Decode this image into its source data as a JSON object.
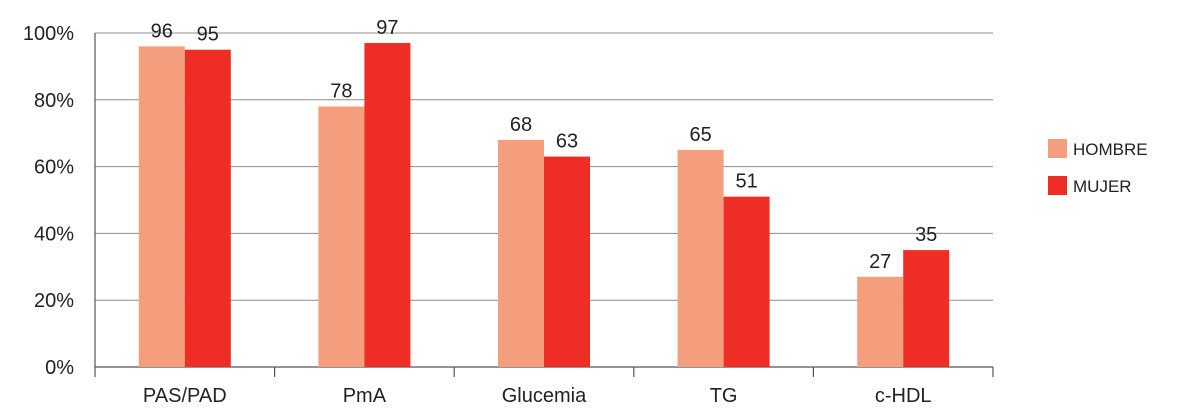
{
  "chart_data": {
    "type": "bar",
    "categories": [
      "PAS/PAD",
      "PmA",
      "Glucemia",
      "TG",
      "c-HDL"
    ],
    "series": [
      {
        "name": "HOMBRE",
        "values": [
          96,
          78,
          68,
          65,
          27
        ],
        "color": "#F59E7E"
      },
      {
        "name": "MUJER",
        "values": [
          95,
          97,
          63,
          51,
          35
        ],
        "color": "#EE2E24"
      }
    ],
    "ylim": [
      0,
      100
    ],
    "yticks": [
      "0%",
      "20%",
      "40%",
      "60%",
      "80%",
      "100%"
    ],
    "ytick_values": [
      0,
      20,
      40,
      60,
      80,
      100
    ],
    "data_labels": [
      [
        "96",
        "78",
        "68",
        "65",
        "27"
      ],
      [
        "95",
        "97",
        "63",
        "51",
        "35"
      ]
    ],
    "grid": true,
    "legend_position": "right"
  }
}
